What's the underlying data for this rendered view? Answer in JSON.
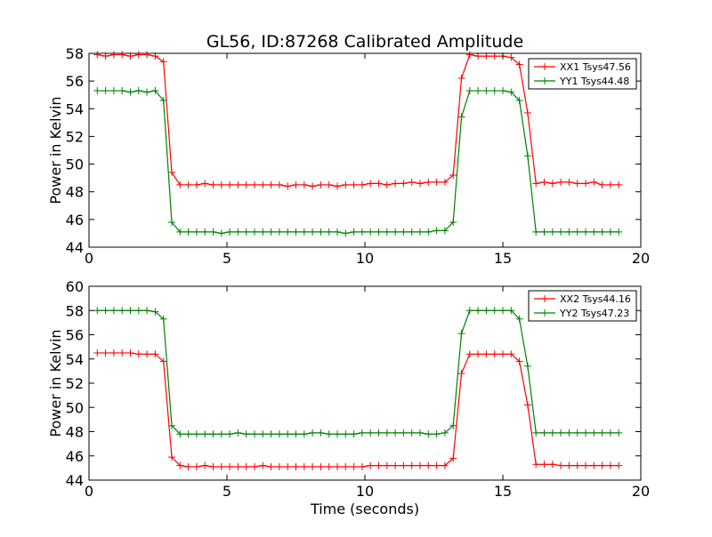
{
  "title": "GL56, ID:87268 Calibrated Amplitude",
  "chart_data": [
    {
      "type": "line",
      "title": "GL56, ID:87268 Calibrated Amplitude",
      "xlabel": "",
      "ylabel": "Power in Kelvin",
      "xlim": [
        0,
        20
      ],
      "ylim": [
        44,
        58
      ],
      "xticks": [
        0,
        5,
        10,
        15,
        20
      ],
      "yticks": [
        44,
        46,
        48,
        50,
        52,
        54,
        56,
        58
      ],
      "grid": false,
      "legend_position": "top-right",
      "x": [
        0.3,
        0.6,
        0.9,
        1.2,
        1.5,
        1.8,
        2.1,
        2.4,
        2.7,
        3.0,
        3.3,
        3.6,
        3.9,
        4.2,
        4.5,
        4.8,
        5.1,
        5.4,
        5.7,
        6.0,
        6.3,
        6.6,
        6.9,
        7.2,
        7.5,
        7.8,
        8.1,
        8.4,
        8.7,
        9.0,
        9.3,
        9.6,
        9.9,
        10.2,
        10.5,
        10.8,
        11.1,
        11.4,
        11.7,
        12.0,
        12.3,
        12.6,
        12.9,
        13.2,
        13.5,
        13.8,
        14.1,
        14.4,
        14.7,
        15.0,
        15.3,
        15.6,
        15.9,
        16.2,
        16.5,
        16.8,
        17.1,
        17.4,
        17.7,
        18.0,
        18.3,
        18.6,
        18.9,
        19.2
      ],
      "series": [
        {
          "name": "XX1 Tsys47.56",
          "color": "#ff0000",
          "values": [
            57.9,
            57.8,
            57.9,
            57.9,
            57.8,
            57.9,
            57.9,
            57.8,
            57.4,
            49.4,
            48.5,
            48.5,
            48.5,
            48.6,
            48.5,
            48.5,
            48.5,
            48.5,
            48.5,
            48.5,
            48.5,
            48.5,
            48.5,
            48.4,
            48.5,
            48.5,
            48.4,
            48.5,
            48.5,
            48.4,
            48.5,
            48.5,
            48.5,
            48.6,
            48.6,
            48.5,
            48.6,
            48.6,
            48.7,
            48.6,
            48.7,
            48.7,
            48.7,
            49.2,
            56.2,
            57.9,
            57.8,
            57.8,
            57.8,
            57.8,
            57.7,
            57.2,
            53.7,
            48.6,
            48.7,
            48.6,
            48.7,
            48.7,
            48.6,
            48.6,
            48.7,
            48.5,
            48.5,
            48.5
          ]
        },
        {
          "name": "YY1 Tsys44.48",
          "color": "#008000",
          "values": [
            55.3,
            55.3,
            55.3,
            55.3,
            55.2,
            55.3,
            55.2,
            55.3,
            54.6,
            45.8,
            45.1,
            45.1,
            45.1,
            45.1,
            45.1,
            45.0,
            45.1,
            45.1,
            45.1,
            45.1,
            45.1,
            45.1,
            45.1,
            45.1,
            45.1,
            45.1,
            45.1,
            45.1,
            45.1,
            45.1,
            45.0,
            45.1,
            45.1,
            45.1,
            45.1,
            45.1,
            45.1,
            45.1,
            45.1,
            45.1,
            45.1,
            45.2,
            45.2,
            45.8,
            53.4,
            55.3,
            55.3,
            55.3,
            55.3,
            55.3,
            55.2,
            54.6,
            50.6,
            45.1,
            45.1,
            45.1,
            45.1,
            45.1,
            45.1,
            45.1,
            45.1,
            45.1,
            45.1,
            45.1
          ]
        }
      ]
    },
    {
      "type": "line",
      "title": "",
      "xlabel": "Time (seconds)",
      "ylabel": "Power in Kelvin",
      "xlim": [
        0,
        20
      ],
      "ylim": [
        44,
        60
      ],
      "xticks": [
        0,
        5,
        10,
        15,
        20
      ],
      "yticks": [
        44,
        46,
        48,
        50,
        52,
        54,
        56,
        58,
        60
      ],
      "grid": false,
      "legend_position": "top-right",
      "x": [
        0.3,
        0.6,
        0.9,
        1.2,
        1.5,
        1.8,
        2.1,
        2.4,
        2.7,
        3.0,
        3.3,
        3.6,
        3.9,
        4.2,
        4.5,
        4.8,
        5.1,
        5.4,
        5.7,
        6.0,
        6.3,
        6.6,
        6.9,
        7.2,
        7.5,
        7.8,
        8.1,
        8.4,
        8.7,
        9.0,
        9.3,
        9.6,
        9.9,
        10.2,
        10.5,
        10.8,
        11.1,
        11.4,
        11.7,
        12.0,
        12.3,
        12.6,
        12.9,
        13.2,
        13.5,
        13.8,
        14.1,
        14.4,
        14.7,
        15.0,
        15.3,
        15.6,
        15.9,
        16.2,
        16.5,
        16.8,
        17.1,
        17.4,
        17.7,
        18.0,
        18.3,
        18.6,
        18.9,
        19.2
      ],
      "series": [
        {
          "name": "XX2 Tsys44.16",
          "color": "#ff0000",
          "values": [
            54.5,
            54.5,
            54.5,
            54.5,
            54.5,
            54.4,
            54.4,
            54.4,
            53.8,
            45.9,
            45.2,
            45.1,
            45.1,
            45.2,
            45.1,
            45.1,
            45.1,
            45.1,
            45.1,
            45.1,
            45.2,
            45.1,
            45.1,
            45.1,
            45.1,
            45.1,
            45.1,
            45.1,
            45.1,
            45.1,
            45.1,
            45.1,
            45.1,
            45.2,
            45.2,
            45.2,
            45.2,
            45.2,
            45.2,
            45.2,
            45.2,
            45.2,
            45.2,
            45.8,
            52.8,
            54.4,
            54.4,
            54.4,
            54.4,
            54.4,
            54.4,
            53.8,
            50.2,
            45.3,
            45.3,
            45.3,
            45.2,
            45.2,
            45.2,
            45.2,
            45.2,
            45.2,
            45.2,
            45.2
          ]
        },
        {
          "name": "YY2 Tsys47.23",
          "color": "#008000",
          "values": [
            58.0,
            58.0,
            58.0,
            58.0,
            58.0,
            58.0,
            58.0,
            57.9,
            57.3,
            48.5,
            47.8,
            47.8,
            47.8,
            47.8,
            47.8,
            47.8,
            47.8,
            47.9,
            47.8,
            47.8,
            47.8,
            47.8,
            47.8,
            47.8,
            47.8,
            47.8,
            47.9,
            47.9,
            47.8,
            47.8,
            47.8,
            47.8,
            47.9,
            47.9,
            47.9,
            47.9,
            47.9,
            47.9,
            47.9,
            47.9,
            47.8,
            47.8,
            47.9,
            48.5,
            56.1,
            58.0,
            58.0,
            58.0,
            58.0,
            58.0,
            58.0,
            57.3,
            53.4,
            47.9,
            47.9,
            47.9,
            47.9,
            47.9,
            47.9,
            47.9,
            47.9,
            47.9,
            47.9,
            47.9
          ]
        }
      ]
    }
  ]
}
